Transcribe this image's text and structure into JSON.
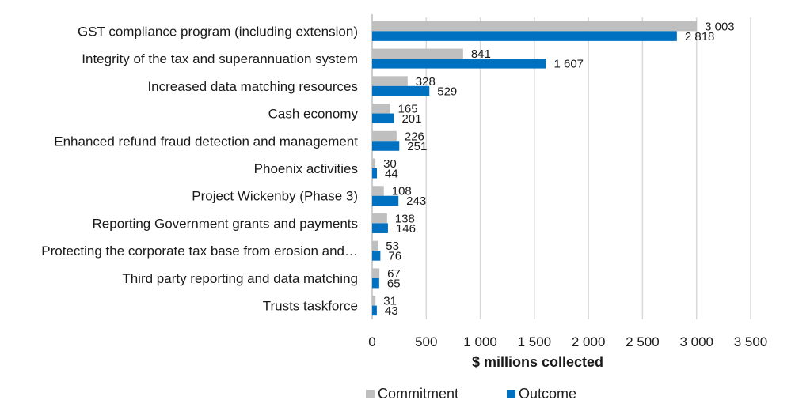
{
  "chart_data": {
    "type": "bar",
    "orientation": "horizontal",
    "categories": [
      "GST compliance program (including extension)",
      "Integrity of the tax and superannuation system",
      "Increased data matching resources",
      "Cash economy",
      "Enhanced refund fraud detection and management",
      "Phoenix activities",
      "Project Wickenby (Phase 3)",
      "Reporting Government grants and payments",
      "Protecting the corporate tax base from erosion and…",
      "Third party reporting and data matching",
      "Trusts taskforce"
    ],
    "series": [
      {
        "name": "Commitment",
        "color": "#bfbfbf",
        "values": [
          3003,
          841,
          328,
          165,
          226,
          30,
          108,
          138,
          53,
          67,
          31
        ],
        "labels": [
          "3 003",
          "841",
          "328",
          "165",
          "226",
          "30",
          "108",
          "138",
          "53",
          "67",
          "31"
        ]
      },
      {
        "name": "Outcome",
        "color": "#0070c0",
        "values": [
          2818,
          1607,
          529,
          201,
          251,
          44,
          243,
          146,
          76,
          65,
          43
        ],
        "labels": [
          "2 818",
          "1 607",
          "529",
          "201",
          "251",
          "44",
          "243",
          "146",
          "76",
          "65",
          "43"
        ]
      }
    ],
    "xlabel": "$ millions collected",
    "xlim": [
      0,
      3500
    ],
    "xticks": [
      0,
      500,
      1000,
      1500,
      2000,
      2500,
      3000,
      3500
    ],
    "xtick_labels": [
      "0",
      "500",
      "1 000",
      "1 500",
      "2 000",
      "2 500",
      "3 000",
      "3 500"
    ],
    "grid": "vertical",
    "legend": "bottom"
  }
}
